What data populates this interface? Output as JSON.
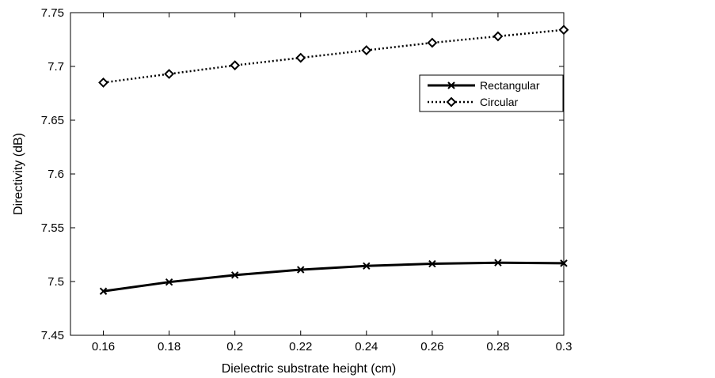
{
  "chart_data": {
    "type": "line",
    "title": "",
    "xlabel": "Dielectric substrate height (cm)",
    "ylabel": "Directivity (dB)",
    "xlim": [
      0.15,
      0.3
    ],
    "ylim": [
      7.45,
      7.75
    ],
    "x": [
      0.16,
      0.18,
      0.2,
      0.22,
      0.24,
      0.26,
      0.28,
      0.3
    ],
    "x_tick_values": [
      0.16,
      0.18,
      0.2,
      0.22,
      0.24,
      0.26,
      0.28,
      0.3
    ],
    "x_tick_labels": [
      "0.16",
      "0.18",
      "0.2",
      "0.22",
      "0.24",
      "0.26",
      "0.28",
      "0.3"
    ],
    "y_tick_values": [
      7.45,
      7.5,
      7.55,
      7.6,
      7.65,
      7.7,
      7.75
    ],
    "y_tick_labels": [
      "7.45",
      "7.5",
      "7.55",
      "7.6",
      "7.65",
      "7.7",
      "7.75"
    ],
    "grid": false,
    "legend_position": "upper-right",
    "series": [
      {
        "name": "Rectangular",
        "marker": "x",
        "line_style": "solid",
        "color": "#000000",
        "values": [
          7.491,
          7.4995,
          7.506,
          7.511,
          7.5145,
          7.5165,
          7.5175,
          7.517
        ]
      },
      {
        "name": "Circular",
        "marker": "diamond",
        "line_style": "dotted",
        "color": "#000000",
        "values": [
          7.685,
          7.693,
          7.701,
          7.708,
          7.715,
          7.722,
          7.728,
          7.734
        ]
      }
    ]
  }
}
